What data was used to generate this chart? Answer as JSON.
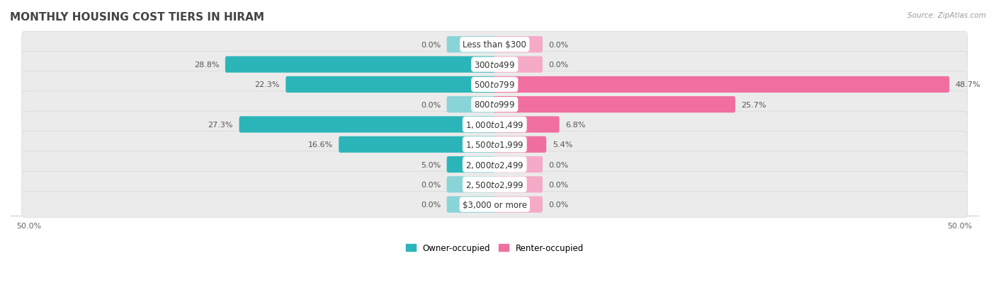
{
  "title": "MONTHLY HOUSING COST TIERS IN HIRAM",
  "source": "Source: ZipAtlas.com",
  "categories": [
    "Less than $300",
    "$300 to $499",
    "$500 to $799",
    "$800 to $999",
    "$1,000 to $1,499",
    "$1,500 to $1,999",
    "$2,000 to $2,499",
    "$2,500 to $2,999",
    "$3,000 or more"
  ],
  "owner_values": [
    0.0,
    28.8,
    22.3,
    0.0,
    27.3,
    16.6,
    5.0,
    0.0,
    0.0
  ],
  "renter_values": [
    0.0,
    0.0,
    48.7,
    25.7,
    6.8,
    5.4,
    0.0,
    0.0,
    0.0
  ],
  "owner_color_dark": "#2bb5b8",
  "owner_color_light": "#89d4d6",
  "renter_color_dark": "#f06fa0",
  "renter_color_light": "#f5aac8",
  "row_bg_color": "#ebebeb",
  "row_line_color": "#d8d8d8",
  "axis_max": 50.0,
  "stub_size": 5.0,
  "label_fontsize": 8.0,
  "cat_label_fontsize": 8.5,
  "title_fontsize": 11,
  "source_fontsize": 7.5,
  "legend_fontsize": 8.5
}
